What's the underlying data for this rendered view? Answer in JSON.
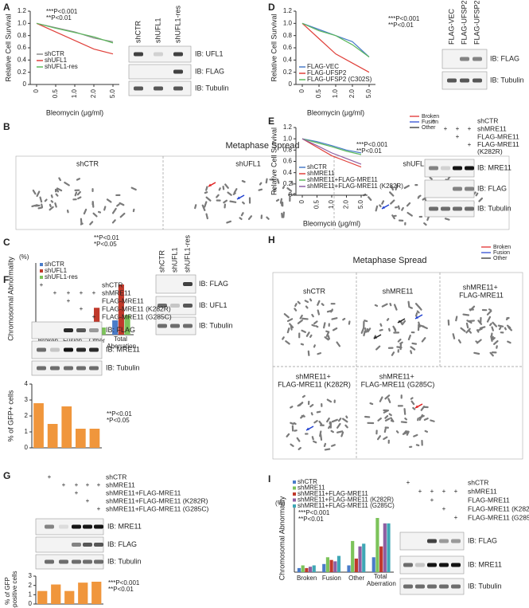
{
  "panels": {
    "A": {
      "label": "A",
      "chart": {
        "type": "line",
        "y_label": "Relative Cell Survival",
        "x_label": "Bleomycin (μg/ml)",
        "categories": [
          "0",
          "0.5",
          "1.0",
          "2.0",
          "5.0"
        ],
        "ylim": [
          0,
          1.2
        ],
        "yticks": [
          0,
          0.2,
          0.4,
          0.6,
          0.8,
          {
            "value": 1,
            "label": "1.0"
          },
          1.2
        ],
        "series": [
          {
            "name": "shCTR",
            "color": "#8c8c8c",
            "values": [
              1,
              0.93,
              0.86,
              0.76,
              0.7
            ]
          },
          {
            "name": "shUFL1",
            "color": "#e0403a",
            "values": [
              1,
              0.86,
              0.72,
              0.58,
              0.5
            ]
          },
          {
            "name": "shUFL1-res",
            "color": "#5cb85c",
            "values": [
              1,
              0.92,
              0.85,
              0.78,
              0.68
            ]
          }
        ],
        "annotations": [
          "***P<0.001",
          "**P<0.01"
        ]
      },
      "blot": {
        "lanes": [
          "shCTR",
          "shUFL1",
          "shUFL1-res"
        ],
        "rows": [
          "IB: UFL1",
          "IB: FLAG",
          "IB: Tubulin"
        ]
      }
    },
    "B": {
      "label": "B",
      "title": "Metaphase Spread",
      "legend": [
        {
          "name": "Broken",
          "color": "#e02020"
        },
        {
          "name": "Fusion",
          "color": "#2040d0"
        },
        {
          "name": "Other",
          "color": "#222222"
        }
      ],
      "cells": [
        "shCTR",
        "shUFL1",
        "shUFL1-res"
      ]
    },
    "C": {
      "label": "C",
      "chart": {
        "type": "bar",
        "y_label": "Chromosomal Abnormality",
        "unit": "(%)",
        "categories": [
          "Broken",
          "Fusion",
          "Other",
          "Total Aberration"
        ],
        "ylim": [
          0,
          4
        ],
        "series": [
          {
            "name": "shCTR",
            "color": "#4a7cc9",
            "values": [
              0.3,
              0.2,
              0.3,
              0.8
            ]
          },
          {
            "name": "shUFL1",
            "color": "#c0392b",
            "values": [
              0.6,
              0.7,
              1.5,
              2.8
            ]
          },
          {
            "name": "shUFL1-res",
            "color": "#7cc35a",
            "values": [
              0.4,
              0.3,
              0.4,
              1.1
            ]
          }
        ],
        "annotations": [
          "**P<0.01",
          "*P<0.05"
        ]
      },
      "blot": {
        "lanes": [
          "shCTR",
          "shUFL1",
          "shUFL1-res"
        ],
        "rows": [
          "IB: FLAG",
          "IB: UFL1",
          "IB: Tubulin"
        ]
      }
    },
    "D": {
      "label": "D",
      "chart": {
        "type": "line",
        "y_label": "Relative Cell Survival",
        "x_label": "Bleomycin (μg/ml)",
        "categories": [
          "0",
          "0.5",
          "1.0",
          "2.0",
          "5.0"
        ],
        "ylim": [
          0,
          1.2
        ],
        "yticks": [
          0,
          0.2,
          0.4,
          0.6,
          0.8,
          {
            "value": 1,
            "label": "1.0"
          },
          1.2
        ],
        "series": [
          {
            "name": "FLAG-VEC",
            "color": "#4a7cc9",
            "values": [
              1,
              0.9,
              0.8,
              0.7,
              0.45
            ]
          },
          {
            "name": "FLAG-UFSP2",
            "color": "#e0403a",
            "values": [
              1,
              0.75,
              0.5,
              0.35,
              0.2
            ]
          },
          {
            "name": "FLAG-UFSP2 (C302S)",
            "color": "#5cb85c",
            "values": [
              1,
              0.88,
              0.8,
              0.65,
              0.45
            ]
          }
        ],
        "annotations": [
          "***P<0.001",
          "**P<0.01"
        ]
      },
      "blot": {
        "lanes": [
          "FLAG-VEC",
          "FLAG-UFSP2",
          "FLAG-UFSP2 (C302S)"
        ],
        "rows": [
          "IB: FLAG",
          "IB: Tubulin"
        ]
      }
    },
    "E": {
      "label": "E",
      "chart": {
        "type": "line",
        "y_label": "Relative Cell Survival",
        "x_label": "Bleomycin (μg/ml)",
        "categories": [
          "0",
          "0.5",
          "1.0",
          "2.0",
          "5.0"
        ],
        "ylim": [
          0,
          1.2
        ],
        "yticks": [
          0,
          0.2,
          0.4,
          0.6,
          0.8,
          {
            "value": 1,
            "label": "1.0"
          },
          1.2
        ],
        "series": [
          {
            "name": "shCTR",
            "color": "#4a7cc9",
            "values": [
              1,
              0.95,
              0.88,
              0.8,
              0.75
            ]
          },
          {
            "name": "shMRE11",
            "color": "#e0403a",
            "values": [
              1,
              0.85,
              0.7,
              0.6,
              0.5
            ]
          },
          {
            "name": "shMRE11+FLAG-MRE11",
            "color": "#5cb85c",
            "values": [
              1,
              0.93,
              0.86,
              0.78,
              0.72
            ]
          },
          {
            "name": "shMRE11+FLAG-MRE11 (K282R)",
            "color": "#8e5ea2",
            "values": [
              1,
              0.88,
              0.75,
              0.65,
              0.55
            ]
          }
        ],
        "annotations": [
          "***P<0.001",
          "**P<0.01"
        ]
      },
      "blot": {
        "conditions": [
          {
            "name": "shCTR",
            "marks": [
              "+",
              null,
              null,
              null
            ]
          },
          {
            "name": "shMRE11",
            "marks": [
              null,
              "+",
              "+",
              "+"
            ]
          },
          {
            "name": "FLAG-MRE11",
            "marks": [
              null,
              null,
              "+",
              null
            ]
          },
          {
            "name": "FLAG-MRE11 (K282R)",
            "marks": [
              null,
              null,
              null,
              "+"
            ]
          }
        ],
        "rows": [
          "IB: MRE11",
          "IB: FLAG",
          "IB: Tubulin"
        ]
      }
    },
    "F": {
      "label": "F",
      "blot": {
        "conditions": [
          {
            "name": "shCTR",
            "marks": [
              "+",
              null,
              null,
              null,
              null
            ]
          },
          {
            "name": "shMRE11",
            "marks": [
              null,
              "+",
              "+",
              "+",
              "+"
            ]
          },
          {
            "name": "FLAG-MRE11",
            "marks": [
              null,
              null,
              "+",
              null,
              null
            ]
          },
          {
            "name": "FLAG-MRE11 (K282R)",
            "marks": [
              null,
              null,
              null,
              "+",
              null
            ]
          },
          {
            "name": "FLAG-MRE11 (G285C)",
            "marks": [
              null,
              null,
              null,
              null,
              "+"
            ]
          }
        ],
        "rows": [
          "IB: FLAG",
          "IB: MRE11",
          "IB: Tubulin"
        ]
      },
      "chart": {
        "type": "bar",
        "y_label": "% of GFP+ cells",
        "values": [
          2.8,
          1.5,
          2.6,
          1.2,
          1.2
        ],
        "color": "#f0963c",
        "ylim": [
          0,
          4
        ],
        "yticks": [
          0,
          1,
          2,
          3,
          4
        ],
        "annotations": [
          "**P<0.01",
          "*P<0.05"
        ]
      }
    },
    "G": {
      "label": "G",
      "blot": {
        "conditions": [
          {
            "name": "shCTR",
            "marks": [
              "+",
              null,
              null,
              null,
              null
            ]
          },
          {
            "name": "shMRE11",
            "marks": [
              null,
              "+",
              "+",
              "+",
              "+"
            ]
          },
          {
            "name": "shMRE11+FLAG-MRE11",
            "marks": [
              null,
              null,
              "+",
              null,
              null
            ]
          },
          {
            "name": "shMRE11+FLAG-MRE11 (K282R)",
            "marks": [
              null,
              null,
              null,
              "+",
              null
            ]
          },
          {
            "name": "shMRE11+FLAG-MRE11 (G285C)",
            "marks": [
              null,
              null,
              null,
              null,
              "+"
            ]
          }
        ],
        "rows": [
          "IB: MRE11",
          "IB: FLAG",
          "IB: Tubulin"
        ]
      },
      "chart": {
        "type": "bar",
        "y_label": "% of GFP -positive cells",
        "values": [
          1.4,
          2.1,
          1.4,
          2.3,
          2.4
        ],
        "color": "#f0963c",
        "ylim": [
          0,
          3
        ],
        "yticks": [
          0,
          1,
          2,
          3
        ],
        "annotations": [
          "***P<0.001",
          "**P<0.01"
        ]
      }
    },
    "H": {
      "label": "H",
      "title": "Metaphase Spread",
      "legend": [
        {
          "name": "Broken",
          "color": "#e02020"
        },
        {
          "name": "Fusion",
          "color": "#2040d0"
        },
        {
          "name": "Other",
          "color": "#222222"
        }
      ],
      "cells": [
        "shCTR",
        "shMRE11",
        "shMRE11+ FLAG-MRE11",
        "shMRE11+ FLAG-MRE11 (K282R)",
        "shMRE11+ FLAG-MRE11 (G285C)"
      ]
    },
    "I": {
      "label": "I",
      "chart": {
        "type": "bar",
        "y_label": "Chromosomal Abnormality",
        "unit": "(%)",
        "categories": [
          "Broken",
          "Fusion",
          "Other",
          "Total Aberration"
        ],
        "ylim": [
          0,
          5
        ],
        "series": [
          {
            "name": "shCTR",
            "color": "#4a7cc9",
            "values": [
              0.3,
              0.6,
              0.5,
              1.1
            ]
          },
          {
            "name": "shMRE11",
            "color": "#7cc35a",
            "values": [
              0.5,
              1.1,
              2.3,
              4.0
            ]
          },
          {
            "name": "shMRE11+FLAG-MRE11",
            "color": "#c0392b",
            "values": [
              0.3,
              0.9,
              1.0,
              1.9
            ]
          },
          {
            "name": "shMRE11+FLAG-MRE11 (K282R)",
            "color": "#8e5ea2",
            "values": [
              0.4,
              0.8,
              1.9,
              3.6
            ]
          },
          {
            "name": "shMRE11+FLAG-MRE11 (G285C)",
            "color": "#3fa7b5",
            "values": [
              0.5,
              1.2,
              2.1,
              3.6
            ]
          }
        ],
        "annotations": [
          "***P<0.001",
          "**P<0.01"
        ]
      },
      "blot": {
        "conditions": [
          {
            "name": "shCTR",
            "marks": [
              "+",
              null,
              null,
              null,
              null
            ]
          },
          {
            "name": "shMRE11",
            "marks": [
              null,
              "+",
              "+",
              "+",
              "+"
            ]
          },
          {
            "name": "FLAG-MRE11",
            "marks": [
              null,
              null,
              "+",
              null,
              null
            ]
          },
          {
            "name": "FLAG-MRE11 (K282R)",
            "marks": [
              null,
              null,
              null,
              "+",
              null
            ]
          },
          {
            "name": "FLAG-MRE11 (G285C)",
            "marks": [
              null,
              null,
              null,
              null,
              "+"
            ]
          }
        ],
        "rows": [
          "IB: FLAG",
          "IB: MRE11",
          "IB: Tubulin"
        ]
      }
    }
  }
}
